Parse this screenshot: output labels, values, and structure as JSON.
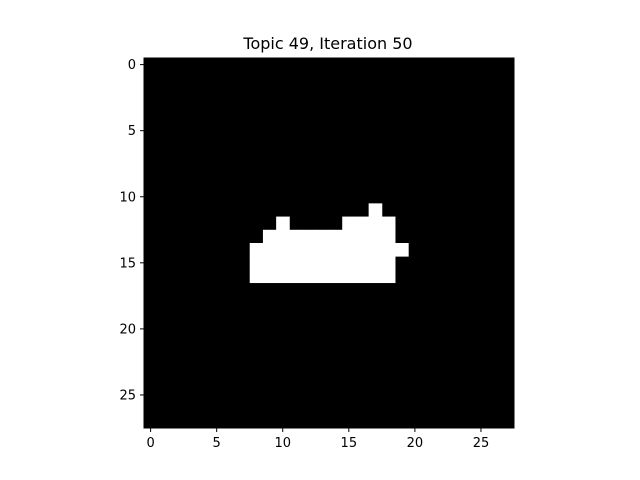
{
  "chart_data": {
    "type": "heatmap",
    "title": "Topic 49, Iteration 50",
    "xlabel": "",
    "ylabel": "",
    "rows": 28,
    "cols": 28,
    "xlim": [
      -0.5,
      27.5
    ],
    "ylim": [
      27.5,
      -0.5
    ],
    "x_ticks": [
      0,
      5,
      10,
      15,
      20,
      25
    ],
    "y_ticks": [
      0,
      5,
      10,
      15,
      20,
      25
    ],
    "grid": false,
    "colormap": "gray",
    "background_color": "#000000",
    "foreground_color": "#ffffff",
    "white_cells": [
      {
        "row": 11,
        "cols": [
          17
        ]
      },
      {
        "row": 12,
        "cols": [
          10,
          15,
          16,
          17,
          18
        ]
      },
      {
        "row": 13,
        "cols": [
          9,
          10,
          11,
          12,
          13,
          14,
          15,
          16,
          17,
          18
        ]
      },
      {
        "row": 14,
        "cols": [
          8,
          9,
          10,
          11,
          12,
          13,
          14,
          15,
          16,
          17,
          18,
          19
        ]
      },
      {
        "row": 15,
        "cols": [
          8,
          9,
          10,
          11,
          12,
          13,
          14,
          15,
          16,
          17,
          18
        ]
      },
      {
        "row": 16,
        "cols": [
          8,
          9,
          10,
          11,
          12,
          13,
          14,
          15,
          16,
          17,
          18
        ]
      }
    ]
  }
}
